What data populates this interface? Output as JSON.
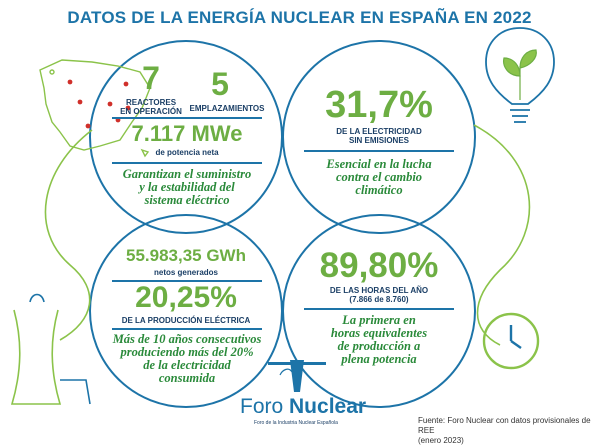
{
  "title": "DATOS DE LA ENERGÍA NUCLEAR EN ESPAÑA EN 2022",
  "reactores": {
    "value": "7",
    "label_1": "REACTORES",
    "label_2": "EN OPERACIÓN"
  },
  "emplazamientos": {
    "value": "5",
    "label": "EMPLAZAMIENTOS"
  },
  "potencia": {
    "value": "7.117 MWe",
    "label": "de potencia neta",
    "desc": [
      "Garantizan el suministro",
      "y la estabilidad del",
      "sistema eléctrico"
    ]
  },
  "electricidad": {
    "value": "31,7%",
    "label_1": "DE LA ELECTRICIDAD",
    "label_2": "SIN EMISIONES",
    "desc": [
      "Esencial en la lucha",
      "contra el cambio",
      "climático"
    ]
  },
  "generacion": {
    "value": "55.983,35 GWh",
    "label": "netos generados"
  },
  "produccion": {
    "value": "20,25%",
    "label": "DE LA PRODUCCIÓN ELÉCTRICA",
    "desc": [
      "Más de 10 años consecutivos",
      "produciendo más del 20%",
      "de la electricidad",
      "consumida"
    ]
  },
  "horas": {
    "value": "89,80%",
    "label_1": "DE LAS HORAS DEL AÑO",
    "label_2": "(7.866 de 8.760)",
    "desc": [
      "La primera en",
      "horas equivalentes",
      "de producción a",
      "plena potencia"
    ]
  },
  "logo": {
    "name_light": "Foro ",
    "name_bold": "Nuclear",
    "tagline": "Foro de la Industria Nuclear Española"
  },
  "source": {
    "line_1": "Fuente: Foro Nuclear con datos provisionales de REE",
    "line_2": "(enero 2023)"
  },
  "colors": {
    "blue": "#1d74a8",
    "navy": "#1b3f66",
    "green": "#6dae43",
    "dark_green": "#2a8a3a"
  },
  "icons": [
    "spain-map-icon",
    "light-bulb-plant-icon",
    "clock-icon",
    "cooling-tower-icon"
  ]
}
